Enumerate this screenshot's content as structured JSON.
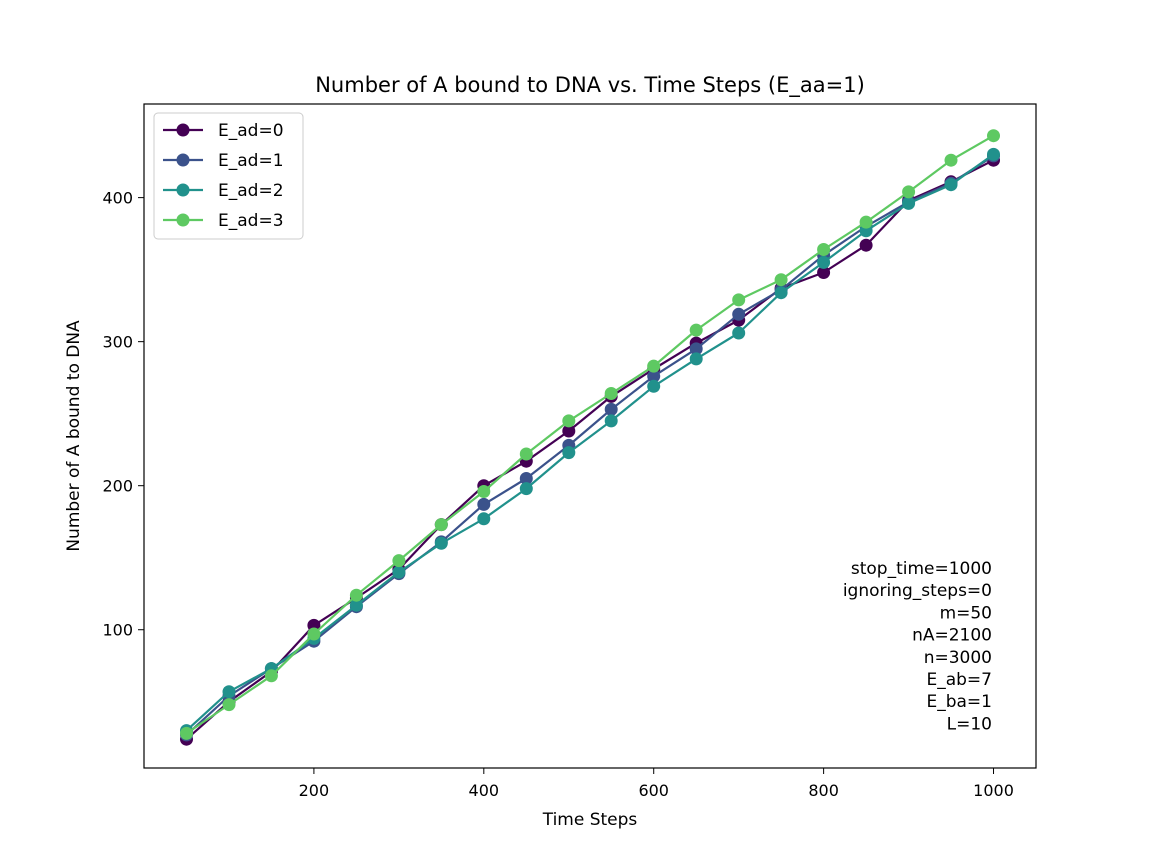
{
  "chart_data": {
    "type": "line",
    "title": "Number of A bound to DNA vs. Time Steps (E_aa=1)",
    "xlabel": "Time Steps",
    "ylabel": "Number of A bound to DNA",
    "xlim": [
      0,
      1050
    ],
    "ylim": [
      4,
      465
    ],
    "xticks": [
      200,
      400,
      600,
      800,
      1000
    ],
    "yticks": [
      100,
      200,
      300,
      400
    ],
    "grid": false,
    "legend_position": "top-left",
    "x": [
      50,
      100,
      150,
      200,
      250,
      300,
      350,
      400,
      450,
      500,
      550,
      600,
      650,
      700,
      750,
      800,
      850,
      900,
      950,
      1000
    ],
    "series": [
      {
        "name": "E_ad=0",
        "color": "#440154",
        "values": [
          24,
          50,
          71,
          103,
          122,
          142,
          173,
          200,
          217,
          238,
          262,
          281,
          299,
          315,
          337,
          348,
          367,
          398,
          411,
          426
        ]
      },
      {
        "name": "E_ad=1",
        "color": "#3b528b",
        "values": [
          27,
          54,
          73,
          92,
          116,
          139,
          161,
          187,
          205,
          228,
          253,
          276,
          295,
          319,
          336,
          360,
          380,
          397,
          410,
          429
        ]
      },
      {
        "name": "E_ad=2",
        "color": "#21918c",
        "values": [
          30,
          57,
          73,
          94,
          117,
          140,
          160,
          177,
          198,
          223,
          245,
          269,
          288,
          306,
          334,
          355,
          377,
          396,
          409,
          430
        ]
      },
      {
        "name": "E_ad=3",
        "color": "#5ec962",
        "values": [
          28,
          48,
          68,
          97,
          124,
          148,
          173,
          196,
          222,
          245,
          264,
          283,
          308,
          329,
          343,
          364,
          383,
          404,
          426,
          443
        ]
      }
    ],
    "annotations": [
      "stop_time=1000",
      "ignoring_steps=0",
      "m=50",
      "nA=2100",
      "n=3000",
      "E_ab=7",
      "E_ba=1",
      "L=10"
    ]
  }
}
